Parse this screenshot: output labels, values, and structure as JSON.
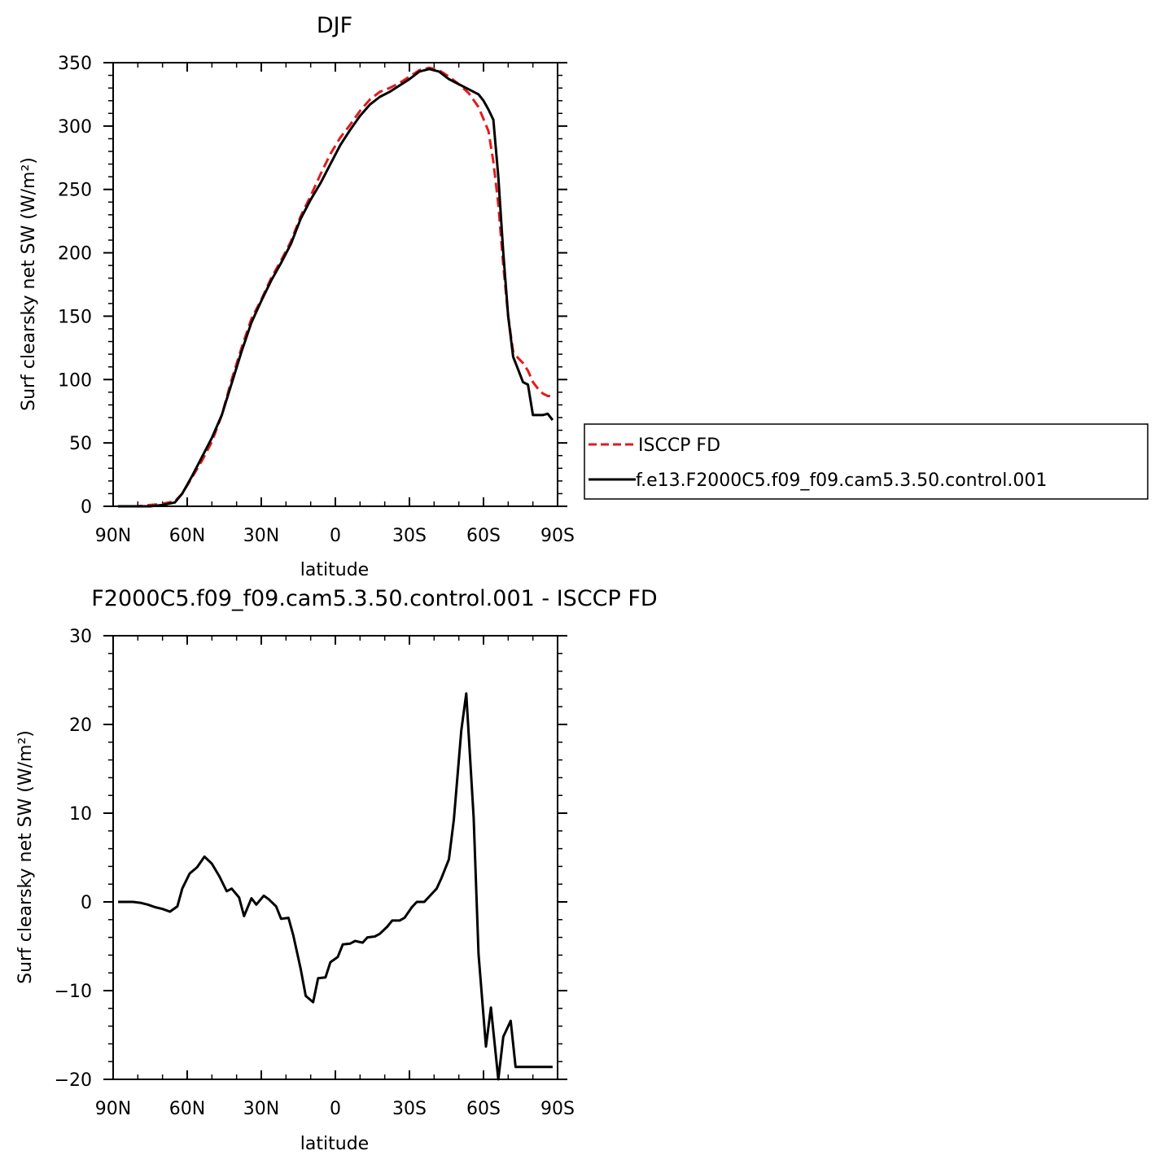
{
  "chart_data": [
    {
      "type": "line",
      "title": "DJF",
      "xlabel": "latitude",
      "ylabel": "Surf clearsky net SW (W/m²)",
      "xlim": [
        -90,
        90
      ],
      "ylim": [
        0,
        350
      ],
      "xticks": [
        -90,
        -60,
        -30,
        0,
        30,
        60,
        90
      ],
      "xtick_labels": [
        "90N",
        "60N",
        "30N",
        "0",
        "30S",
        "60S",
        "90S"
      ],
      "yticks": [
        0,
        50,
        100,
        150,
        200,
        250,
        300,
        350
      ],
      "ytick_labels": [
        "0",
        "50",
        "100",
        "150",
        "200",
        "250",
        "300",
        "350"
      ],
      "grid": false,
      "legend_position": "right",
      "series": [
        {
          "name": "ISCCP FD",
          "color": "#e41a1c",
          "dash": "dashed",
          "x": [
            -88,
            -85,
            -80,
            -75,
            -70,
            -65,
            -62,
            -58,
            -54,
            -50,
            -46,
            -42,
            -38,
            -34,
            -30,
            -26,
            -22,
            -18,
            -14,
            -10,
            -6,
            -2,
            2,
            6,
            10,
            14,
            18,
            22,
            26,
            30,
            34,
            38,
            42,
            46,
            50,
            54,
            58,
            62,
            64,
            66,
            68,
            70,
            72,
            74,
            76,
            78,
            80,
            82,
            84,
            86,
            88
          ],
          "y": [
            0,
            0,
            0,
            1,
            2,
            4,
            10,
            23,
            36,
            51,
            72,
            100,
            125,
            148,
            163,
            180,
            194,
            209,
            229,
            245,
            262,
            278,
            291,
            301,
            312,
            321,
            327,
            330,
            334,
            339,
            344,
            346,
            344,
            339,
            333,
            326,
            315,
            296,
            272,
            238,
            190,
            150,
            122,
            117,
            113,
            107,
            98,
            93,
            89,
            87,
            87
          ]
        },
        {
          "name": "f.e13.F2000C5.f09_f09.cam5.3.50.control.001",
          "color": "#000000",
          "dash": "solid",
          "x": [
            -88,
            -85,
            -80,
            -75,
            -70,
            -65,
            -62,
            -58,
            -54,
            -50,
            -46,
            -42,
            -38,
            -34,
            -30,
            -26,
            -22,
            -18,
            -14,
            -10,
            -6,
            -2,
            2,
            6,
            10,
            14,
            18,
            22,
            26,
            30,
            34,
            38,
            42,
            46,
            50,
            54,
            58,
            60,
            62,
            64,
            66,
            68,
            70,
            72,
            74,
            76,
            78,
            80,
            82,
            84,
            86,
            88
          ],
          "y": [
            0,
            0,
            0,
            0,
            1,
            3,
            10,
            24,
            39,
            54,
            72,
            97,
            122,
            145,
            162,
            178,
            192,
            207,
            227,
            242,
            255,
            270,
            285,
            297,
            308,
            317,
            323,
            327,
            332,
            337,
            343,
            345,
            343,
            337,
            333,
            329,
            325,
            320,
            313,
            305,
            260,
            200,
            150,
            118,
            108,
            98,
            96,
            72,
            72,
            72,
            73,
            68
          ]
        }
      ]
    },
    {
      "type": "line",
      "title": "F2000C5.f09_f09.cam5.3.50.control.001 - ISCCP FD",
      "xlabel": "latitude",
      "ylabel": "Surf clearsky net SW (W/m²)",
      "xlim": [
        -90,
        90
      ],
      "ylim": [
        -20,
        30
      ],
      "xticks": [
        -90,
        -60,
        -30,
        0,
        30,
        60,
        90
      ],
      "xtick_labels": [
        "90N",
        "60N",
        "30N",
        "0",
        "30S",
        "60S",
        "90S"
      ],
      "yticks": [
        -20,
        -10,
        0,
        10,
        20,
        30
      ],
      "ytick_labels": [
        "−20",
        "−10",
        "0",
        "10",
        "20",
        "30"
      ],
      "grid": false,
      "series": [
        {
          "color": "#000000",
          "dash": "solid",
          "x": [
            -88,
            -85,
            -82,
            -79,
            -76,
            -73,
            -70,
            -67,
            -64,
            -62,
            -59,
            -56,
            -53,
            -50,
            -47,
            -44,
            -42,
            -39,
            -37,
            -34,
            -32,
            -29,
            -27,
            -24,
            -22,
            -19,
            -17,
            -14,
            -12,
            -9,
            -7,
            -4,
            -2,
            1,
            3,
            6,
            8,
            11,
            13,
            16,
            18,
            21,
            23,
            26,
            28,
            31,
            33,
            36,
            38,
            41,
            43,
            46,
            48,
            51,
            53,
            56,
            58,
            61,
            63,
            66,
            68,
            71,
            73,
            76,
            78,
            81,
            83,
            86,
            88
          ],
          "y": [
            0,
            0,
            0,
            -0.1,
            -0.3,
            -0.6,
            -0.8,
            -1.1,
            -0.5,
            1.5,
            3.2,
            3.9,
            5.1,
            4.3,
            2.9,
            1.2,
            1.5,
            0.5,
            -1.6,
            0.4,
            -0.3,
            0.7,
            0.3,
            -0.5,
            -1.9,
            -1.8,
            -3.8,
            -7.6,
            -10.6,
            -11.3,
            -8.6,
            -8.5,
            -6.8,
            -6.2,
            -4.8,
            -4.7,
            -4.4,
            -4.6,
            -4.0,
            -3.9,
            -3.6,
            -2.8,
            -2.1,
            -2.1,
            -1.8,
            -0.6,
            0,
            0,
            0.6,
            1.5,
            2.7,
            4.8,
            9.3,
            19.3,
            23.5,
            9.5,
            -5.9,
            -16.3,
            -11.9,
            -20,
            -15.2,
            -13.4,
            -18.6,
            -18.6,
            -18.6,
            -18.6,
            -18.6,
            -18.6,
            -18.6
          ]
        }
      ]
    }
  ]
}
